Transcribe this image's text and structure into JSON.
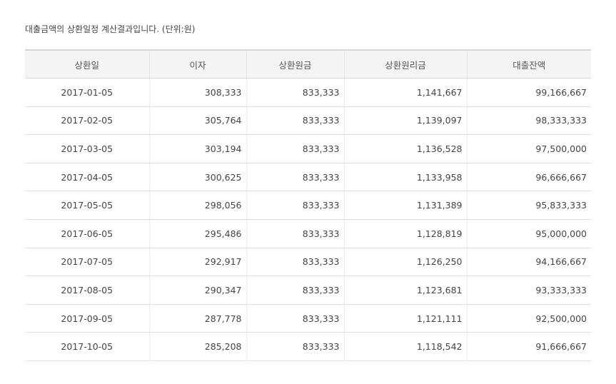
{
  "caption": "대출금액의 상환일정 계산결과입니다. (단위:원)",
  "table": {
    "headers": [
      "상환일",
      "이자",
      "상환원금",
      "상환원리금",
      "대출잔액"
    ],
    "rows": [
      [
        "2017-01-05",
        "308,333",
        "833,333",
        "1,141,667",
        "99,166,667"
      ],
      [
        "2017-02-05",
        "305,764",
        "833,333",
        "1,139,097",
        "98,333,333"
      ],
      [
        "2017-03-05",
        "303,194",
        "833,333",
        "1,136,528",
        "97,500,000"
      ],
      [
        "2017-04-05",
        "300,625",
        "833,333",
        "1,133,958",
        "96,666,667"
      ],
      [
        "2017-05-05",
        "298,056",
        "833,333",
        "1,131,389",
        "95,833,333"
      ],
      [
        "2017-06-05",
        "295,486",
        "833,333",
        "1,128,819",
        "95,000,000"
      ],
      [
        "2017-07-05",
        "292,917",
        "833,333",
        "1,126,250",
        "94,166,667"
      ],
      [
        "2017-08-05",
        "290,347",
        "833,333",
        "1,123,681",
        "93,333,333"
      ],
      [
        "2017-09-05",
        "287,778",
        "833,333",
        "1,121,111",
        "92,500,000"
      ],
      [
        "2017-10-05",
        "285,208",
        "833,333",
        "1,118,542",
        "91,666,667"
      ]
    ]
  }
}
